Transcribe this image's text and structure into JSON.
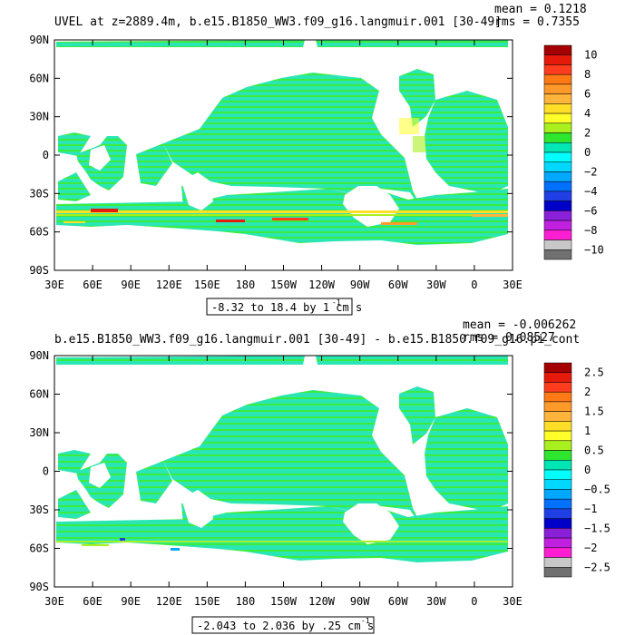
{
  "panels": [
    {
      "title": "UVEL at z=2889.4m, b.e15.B1850_WW3.f09_g16.langmuir.001 [30-49]",
      "stats_mean": "mean = 0.1218",
      "stats_rms": "rms = 0.7355",
      "contour_info": "-8.32 to 18.4 by 1 cm s",
      "contour_unit_exp": "-1"
    },
    {
      "title": "b.e15.B1850_WW3.f09_g16.langmuir.001 [30-49] - b.e15.B1850.f09_g16.pi_cont",
      "stats_mean": "mean = -0.006262",
      "stats_rms": "rms = 0.08527",
      "contour_info": "-2.043 to 2.036 by .25 cm s",
      "contour_unit_exp": "-1"
    }
  ],
  "chart_data": [
    {
      "type": "heatmap",
      "title": "UVEL at z=2889.4m, b.e15.B1850_WW3.f09_g16.langmuir.001 [30-49]",
      "x_ticks": [
        "30E",
        "60E",
        "90E",
        "120E",
        "150E",
        "180",
        "150W",
        "120W",
        "90W",
        "60W",
        "30W",
        "0",
        "30E"
      ],
      "y_ticks": [
        "90N",
        "60N",
        "30N",
        "0",
        "30S",
        "60S",
        "90S"
      ],
      "colorbar_labels": [
        "10",
        "8",
        "6",
        "4",
        "2",
        "0",
        "−2",
        "−4",
        "−6",
        "−8",
        "−10"
      ],
      "colorbar_colors": [
        "#a50000",
        "#e61a0a",
        "#ff3c1e",
        "#ff7a14",
        "#ff9a2a",
        "#ffb43c",
        "#ffde28",
        "#ffff2a",
        "#a8f01e",
        "#2ee62e",
        "#00e6b4",
        "#00ffff",
        "#00d8ff",
        "#00a8ff",
        "#0070ff",
        "#2040e6",
        "#0000c8",
        "#8a20d8",
        "#c020e0",
        "#ff1ed2",
        "#c8c8c8",
        "#707070"
      ],
      "map_colors": {
        "land": "#ffffff",
        "ocean_base": "#2ae6b4",
        "ocean_alt": "#3cec3c",
        "frame": "#000000"
      },
      "stats": {
        "mean": 0.1218,
        "rms": 0.7355
      },
      "contour_range": [
        -8.32,
        18.4
      ],
      "contour_step": 1
    },
    {
      "type": "heatmap",
      "title": "b.e15.B1850_WW3.f09_g16.langmuir.001 [30-49] - b.e15.B1850.f09_g16.pi_cont",
      "x_ticks": [
        "30E",
        "60E",
        "90E",
        "120E",
        "150E",
        "180",
        "150W",
        "120W",
        "90W",
        "60W",
        "30W",
        "0",
        "30E"
      ],
      "y_ticks": [
        "90N",
        "60N",
        "30N",
        "0",
        "30S",
        "60S",
        "90S"
      ],
      "colorbar_labels": [
        "2.5",
        "2",
        "1.5",
        "1",
        "0.5",
        "0",
        "−0.5",
        "−1",
        "−1.5",
        "−2",
        "−2.5"
      ],
      "colorbar_colors": [
        "#a50000",
        "#e61a0a",
        "#ff3c1e",
        "#ff7a14",
        "#ff9a2a",
        "#ffb43c",
        "#ffde28",
        "#ffff2a",
        "#a8f01e",
        "#2ee62e",
        "#00e6b4",
        "#00ffff",
        "#00d8ff",
        "#00a8ff",
        "#0070ff",
        "#2040e6",
        "#0000c8",
        "#8a20d8",
        "#c020e0",
        "#ff1ed2",
        "#c8c8c8",
        "#707070"
      ],
      "map_colors": {
        "land": "#ffffff",
        "ocean_base": "#2ae6b4",
        "ocean_alt": "#3cec3c",
        "frame": "#000000"
      },
      "stats": {
        "mean": -0.006262,
        "rms": 0.08527
      },
      "contour_range": [
        -2.043,
        2.036
      ],
      "contour_step": 0.25
    }
  ]
}
